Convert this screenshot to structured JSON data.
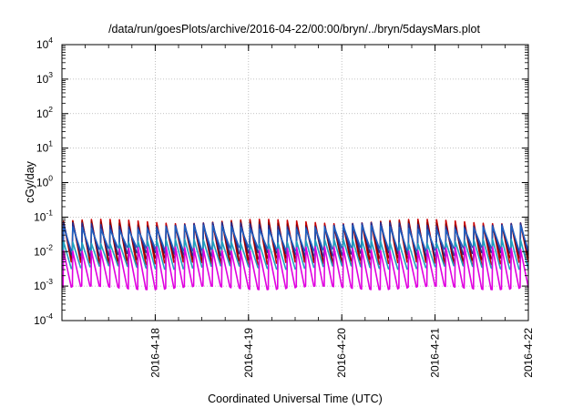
{
  "chart_data": {
    "type": "line",
    "title": "/data/run/goesPlots/archive/2016-04-22/00:00/bryn/../bryn/5daysMars.plot",
    "xlabel": "Coordinated Universal Time (UTC)",
    "ylabel": "cGy/day",
    "yscale": "log",
    "ylim": [
      0.0001,
      10000
    ],
    "xlim": [
      0,
      5
    ],
    "grid": true,
    "y_ticks": [
      {
        "base": "10",
        "exp": "4"
      },
      {
        "base": "10",
        "exp": "3"
      },
      {
        "base": "10",
        "exp": "2"
      },
      {
        "base": "10",
        "exp": "1"
      },
      {
        "base": "10",
        "exp": "0"
      },
      {
        "base": "10",
        "exp": "-1"
      },
      {
        "base": "10",
        "exp": "-2"
      },
      {
        "base": "10",
        "exp": "-3"
      },
      {
        "base": "10",
        "exp": "-4"
      }
    ],
    "x_ticks": [
      {
        "label": "2016-4-18",
        "day": 1
      },
      {
        "label": "2016-4-19",
        "day": 2
      },
      {
        "label": "2016-4-20",
        "day": 3
      },
      {
        "label": "2016-4-21",
        "day": 4
      },
      {
        "label": "2016-4-22",
        "day": 5
      }
    ],
    "cycle_days": 0.1,
    "series": [
      {
        "color": "#cc0000",
        "peak": 0.075,
        "trough": 0.0045
      },
      {
        "color": "#8b0000",
        "peak": 0.065,
        "trough": 0.006
      },
      {
        "color": "#2a2a8a",
        "peak": 0.06,
        "trough": 0.0085
      },
      {
        "color": "#1f5fbf",
        "peak": 0.05,
        "trough": 0.012
      },
      {
        "color": "#20a0c0",
        "peak": 0.02,
        "trough": 0.0035
      },
      {
        "color": "#e000e0",
        "peak": 0.012,
        "trough": 0.0009
      }
    ]
  }
}
